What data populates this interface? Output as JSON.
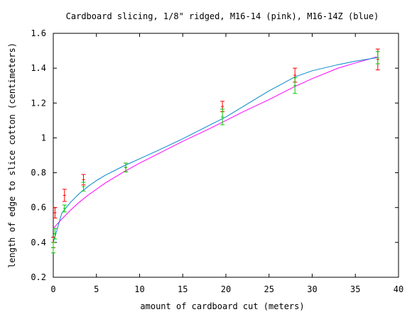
{
  "chart_data": {
    "type": "scatter",
    "title": "Cardboard slicing, 1/8\" ridged, M16-14 (pink), M16-14Z (blue)",
    "xlabel": "amount of cardboard cut (meters)",
    "ylabel": "length of edge to slice cotton (centimeters)",
    "xlim": [
      0,
      40
    ],
    "ylim": [
      0.2,
      1.6
    ],
    "x_ticks": [
      "0",
      "5",
      "10",
      "15",
      "20",
      "25",
      "30",
      "35",
      "40"
    ],
    "y_ticks": [
      "0.2",
      "0.4",
      "0.6",
      "0.8",
      "1",
      "1.2",
      "1.4",
      "1.6"
    ],
    "grid": false,
    "legend": "none",
    "series": [
      {
        "color": "#ff0000",
        "points": [
          {
            "x": 0,
            "y": 0.4,
            "err": 0.03
          },
          {
            "x": 0.2,
            "y": 0.57,
            "err": 0.03
          },
          {
            "x": 1.3,
            "y": 0.67,
            "err": 0.035
          },
          {
            "x": 3.5,
            "y": 0.76,
            "err": 0.03
          },
          {
            "x": 8.4,
            "y": 0.83,
            "err": 0.025
          },
          {
            "x": 19.6,
            "y": 1.18,
            "err": 0.03
          },
          {
            "x": 28.0,
            "y": 1.36,
            "err": 0.04
          },
          {
            "x": 37.6,
            "y": 1.45,
            "err": 0.06
          }
        ]
      },
      {
        "color": "#00cc00",
        "points": [
          {
            "x": 0,
            "y": 0.37,
            "err": 0.03
          },
          {
            "x": 0.2,
            "y": 0.45,
            "err": 0.03
          },
          {
            "x": 1.3,
            "y": 0.595,
            "err": 0.02
          },
          {
            "x": 3.5,
            "y": 0.72,
            "err": 0.025
          },
          {
            "x": 8.4,
            "y": 0.83,
            "err": 0.025
          },
          {
            "x": 19.6,
            "y": 1.12,
            "err": 0.045
          },
          {
            "x": 28.0,
            "y": 1.3,
            "err": 0.045
          },
          {
            "x": 37.6,
            "y": 1.46,
            "err": 0.035
          }
        ]
      }
    ],
    "fits": [
      {
        "color": "#ff00ff",
        "x": [
          0,
          1,
          2,
          3,
          4,
          5,
          6,
          8,
          10,
          12,
          15,
          18,
          20,
          22,
          25,
          28,
          30,
          33,
          35,
          37.5
        ],
        "y": [
          0.48,
          0.535,
          0.585,
          0.63,
          0.67,
          0.705,
          0.74,
          0.8,
          0.855,
          0.905,
          0.98,
          1.05,
          1.1,
          1.15,
          1.22,
          1.295,
          1.34,
          1.4,
          1.43,
          1.465
        ]
      },
      {
        "color": "#0088cc",
        "x": [
          0,
          1,
          2,
          3,
          4,
          5,
          6,
          8,
          10,
          12,
          15,
          18,
          20,
          22,
          25,
          28,
          30,
          33,
          35,
          37.5
        ],
        "y": [
          0.4,
          0.57,
          0.63,
          0.68,
          0.72,
          0.755,
          0.785,
          0.835,
          0.88,
          0.925,
          0.995,
          1.07,
          1.12,
          1.18,
          1.27,
          1.35,
          1.385,
          1.42,
          1.44,
          1.46
        ]
      }
    ]
  }
}
